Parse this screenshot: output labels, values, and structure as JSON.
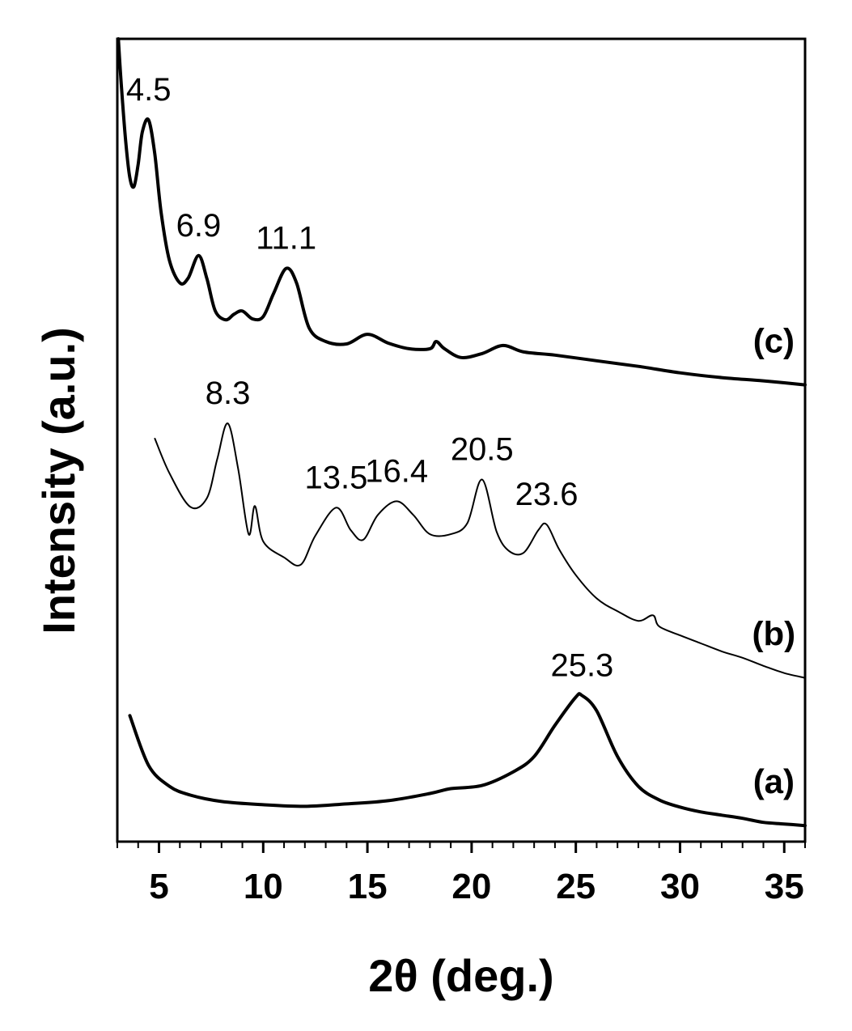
{
  "chart_data": {
    "type": "line",
    "title": "",
    "xlabel": "2θ (deg.)",
    "ylabel": "Intensity (a.u.)",
    "xlim": [
      3,
      36
    ],
    "ylim": [
      0,
      100
    ],
    "xticks": [
      5,
      10,
      15,
      20,
      25,
      30,
      35
    ],
    "yticks_shown": false,
    "grid": false,
    "series": [
      {
        "name": "(a)",
        "label_x": 34.5,
        "x": [
          3.6,
          4.5,
          5.5,
          6.5,
          8,
          10,
          12,
          14,
          16,
          18,
          19,
          20.5,
          22,
          23,
          24,
          25,
          25.3,
          26,
          27,
          28,
          29,
          30,
          31,
          32,
          33,
          34,
          35,
          36
        ],
        "y": [
          15.7,
          9.5,
          6.9,
          5.8,
          5.0,
          4.6,
          4.4,
          4.7,
          5.1,
          6.0,
          6.6,
          7.0,
          8.7,
          10.6,
          14.5,
          18.0,
          18.2,
          16.3,
          10.6,
          6.9,
          5.2,
          4.3,
          3.7,
          3.3,
          2.9,
          2.4,
          2.2,
          2.0
        ],
        "peaks": [
          {
            "x": 25.3,
            "y": 18.2,
            "label": "25.3"
          }
        ]
      },
      {
        "name": "(b)",
        "label_x": 34.5,
        "x": [
          4.8,
          5.5,
          6.5,
          7.3,
          7.8,
          8.3,
          8.8,
          9.3,
          9.6,
          10,
          11,
          11.8,
          12.5,
          13.5,
          14.2,
          14.8,
          15.5,
          16.4,
          17.2,
          18,
          19,
          19.8,
          20.5,
          21.2,
          21.8,
          22.5,
          23.2,
          23.6,
          24.2,
          25,
          26,
          27,
          28,
          28.7,
          29,
          30,
          31,
          32,
          33,
          34,
          35,
          36
        ],
        "y": [
          50.2,
          45.9,
          41.7,
          42.8,
          47.7,
          52.1,
          46.4,
          38.3,
          41.8,
          37.4,
          35.4,
          34.5,
          38.1,
          41.6,
          38.8,
          37.6,
          40.7,
          42.4,
          40.7,
          38.3,
          38.3,
          39.7,
          45.1,
          38.6,
          36.2,
          36.0,
          38.8,
          39.5,
          36.4,
          33.2,
          30.3,
          28.7,
          27.5,
          28.2,
          26.8,
          25.7,
          24.7,
          23.7,
          22.9,
          21.9,
          21.0,
          20.4
        ],
        "peaks": [
          {
            "x": 8.3,
            "y": 52.1,
            "label": "8.3"
          },
          {
            "x": 13.5,
            "y": 41.6,
            "label": "13.5"
          },
          {
            "x": 16.4,
            "y": 42.4,
            "label": "16.4"
          },
          {
            "x": 20.5,
            "y": 45.1,
            "label": "20.5"
          },
          {
            "x": 23.6,
            "y": 39.5,
            "label": "23.6"
          }
        ]
      },
      {
        "name": "(c)",
        "label_x": 34.5,
        "x": [
          3.05,
          3.2,
          3.4,
          3.6,
          3.8,
          4.0,
          4.2,
          4.5,
          4.8,
          5.1,
          5.5,
          6.0,
          6.4,
          6.9,
          7.3,
          7.7,
          8.2,
          8.6,
          9.0,
          9.5,
          10,
          10.5,
          11.1,
          11.6,
          12.2,
          13,
          14,
          15,
          16,
          17,
          18,
          18.3,
          18.7,
          19.5,
          20.5,
          21.5,
          22.5,
          24,
          26,
          28,
          30,
          32,
          34,
          36
        ],
        "y": [
          100,
          93.9,
          87.3,
          82.7,
          81.6,
          84.4,
          88.4,
          89.9,
          85.6,
          78.4,
          72.4,
          69.6,
          70.2,
          73.0,
          70.1,
          66.1,
          65.0,
          65.7,
          66.1,
          65.1,
          65.4,
          68.3,
          71.4,
          69.6,
          64.0,
          62.3,
          62.0,
          63.2,
          62.1,
          61.4,
          61.4,
          62.3,
          61.4,
          60.3,
          60.8,
          61.8,
          61.0,
          60.6,
          59.9,
          59.2,
          58.4,
          57.8,
          57.4,
          56.9
        ],
        "peaks": [
          {
            "x": 4.5,
            "y": 89.9,
            "label": "4.5"
          },
          {
            "x": 6.9,
            "y": 73.0,
            "label": "6.9"
          },
          {
            "x": 11.1,
            "y": 71.4,
            "label": "11.1"
          }
        ]
      }
    ]
  }
}
